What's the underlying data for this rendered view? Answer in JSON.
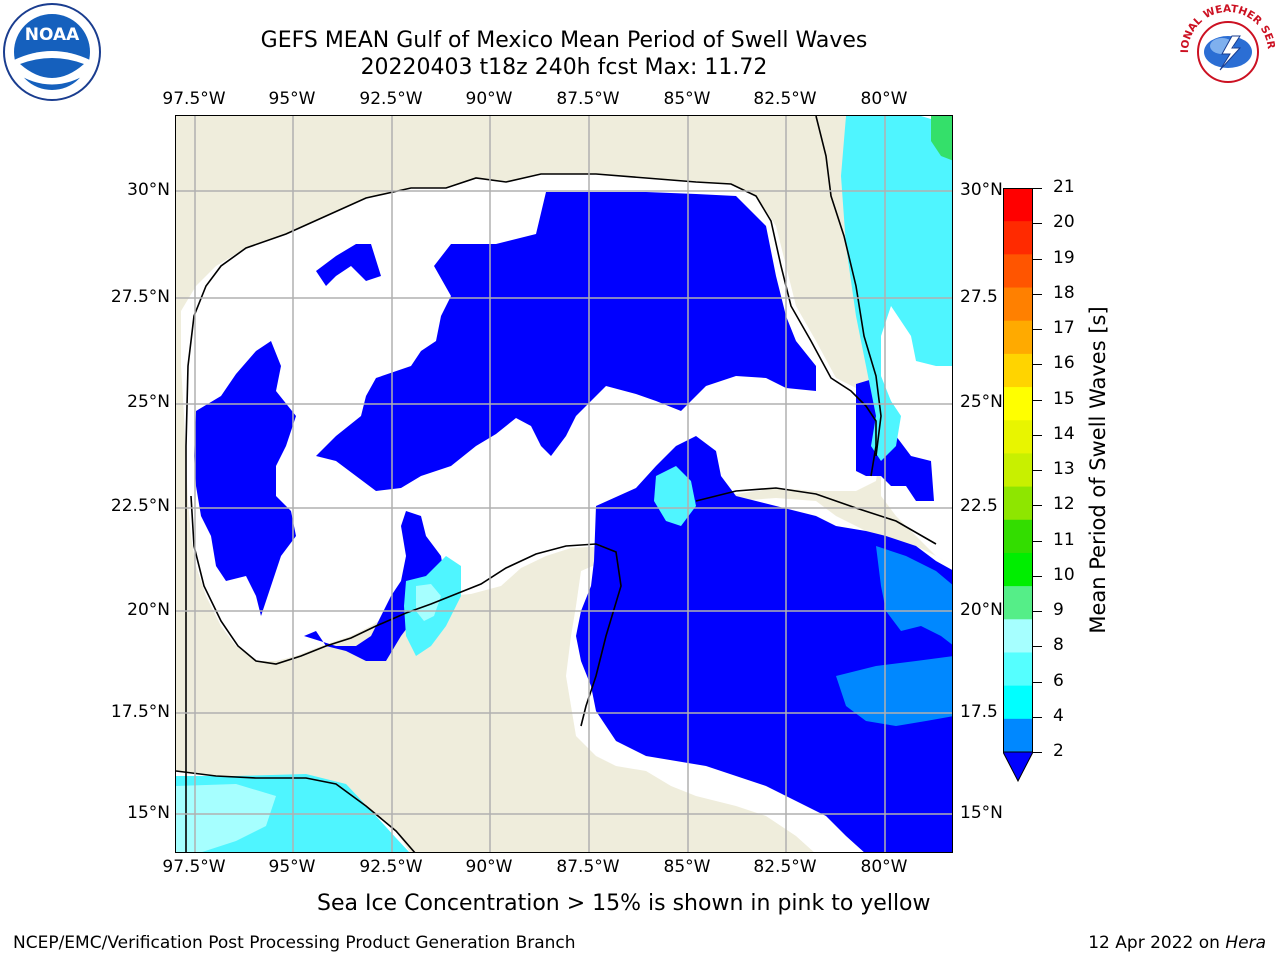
{
  "title_line1": "GEFS MEAN Gulf of Mexico Mean Period of Swell Waves",
  "title_line2": "20220403 t18z 240h fcst   Max: 11.72",
  "lon_ticks": [
    "97.5°W",
    "95°W",
    "92.5°W",
    "90°W",
    "87.5°W",
    "85°W",
    "82.5°W",
    "80°W"
  ],
  "lat_ticks_left": [
    "30°N",
    "27.5°N",
    "25°N",
    "22.5°N",
    "20°N",
    "17.5°N",
    "15°N"
  ],
  "lat_ticks_right": [
    "30°N",
    "27.5",
    "25°N",
    "22.5",
    "20°N",
    "17.5",
    "15°N"
  ],
  "map_extent": {
    "lon_min": -98,
    "lon_max": -78.25,
    "lat_min": 14,
    "lat_max": 31.75
  },
  "colorbar": {
    "title": "Mean Period of Swell Waves [s]",
    "labels": [
      "21",
      "20",
      "19",
      "18",
      "17",
      "16",
      "15",
      "14",
      "13",
      "12",
      "11",
      "10",
      "9",
      "8",
      "6",
      "4",
      "2"
    ],
    "colors": [
      "#ff0000",
      "#ff2a00",
      "#ff5500",
      "#ff8000",
      "#ffaa00",
      "#ffd400",
      "#ffff00",
      "#e8f500",
      "#c8f000",
      "#8ee600",
      "#33dd00",
      "#00ee00",
      "#55ee88",
      "#a6ffff",
      "#55ffff",
      "#00ffff",
      "#0088ff",
      "#0000ff"
    ]
  },
  "bottom_note": "Sea Ice Concentration > 15% is shown in pink to yellow",
  "footer_left": "NCEP/EMC/Verification Post Processing Product Generation Branch",
  "footer_right_date": "12 Apr 2022 on",
  "footer_right_host": "Hera",
  "logos": {
    "noaa": "NOAA",
    "nws": "NATIONAL WEATHER SERVICE"
  }
}
